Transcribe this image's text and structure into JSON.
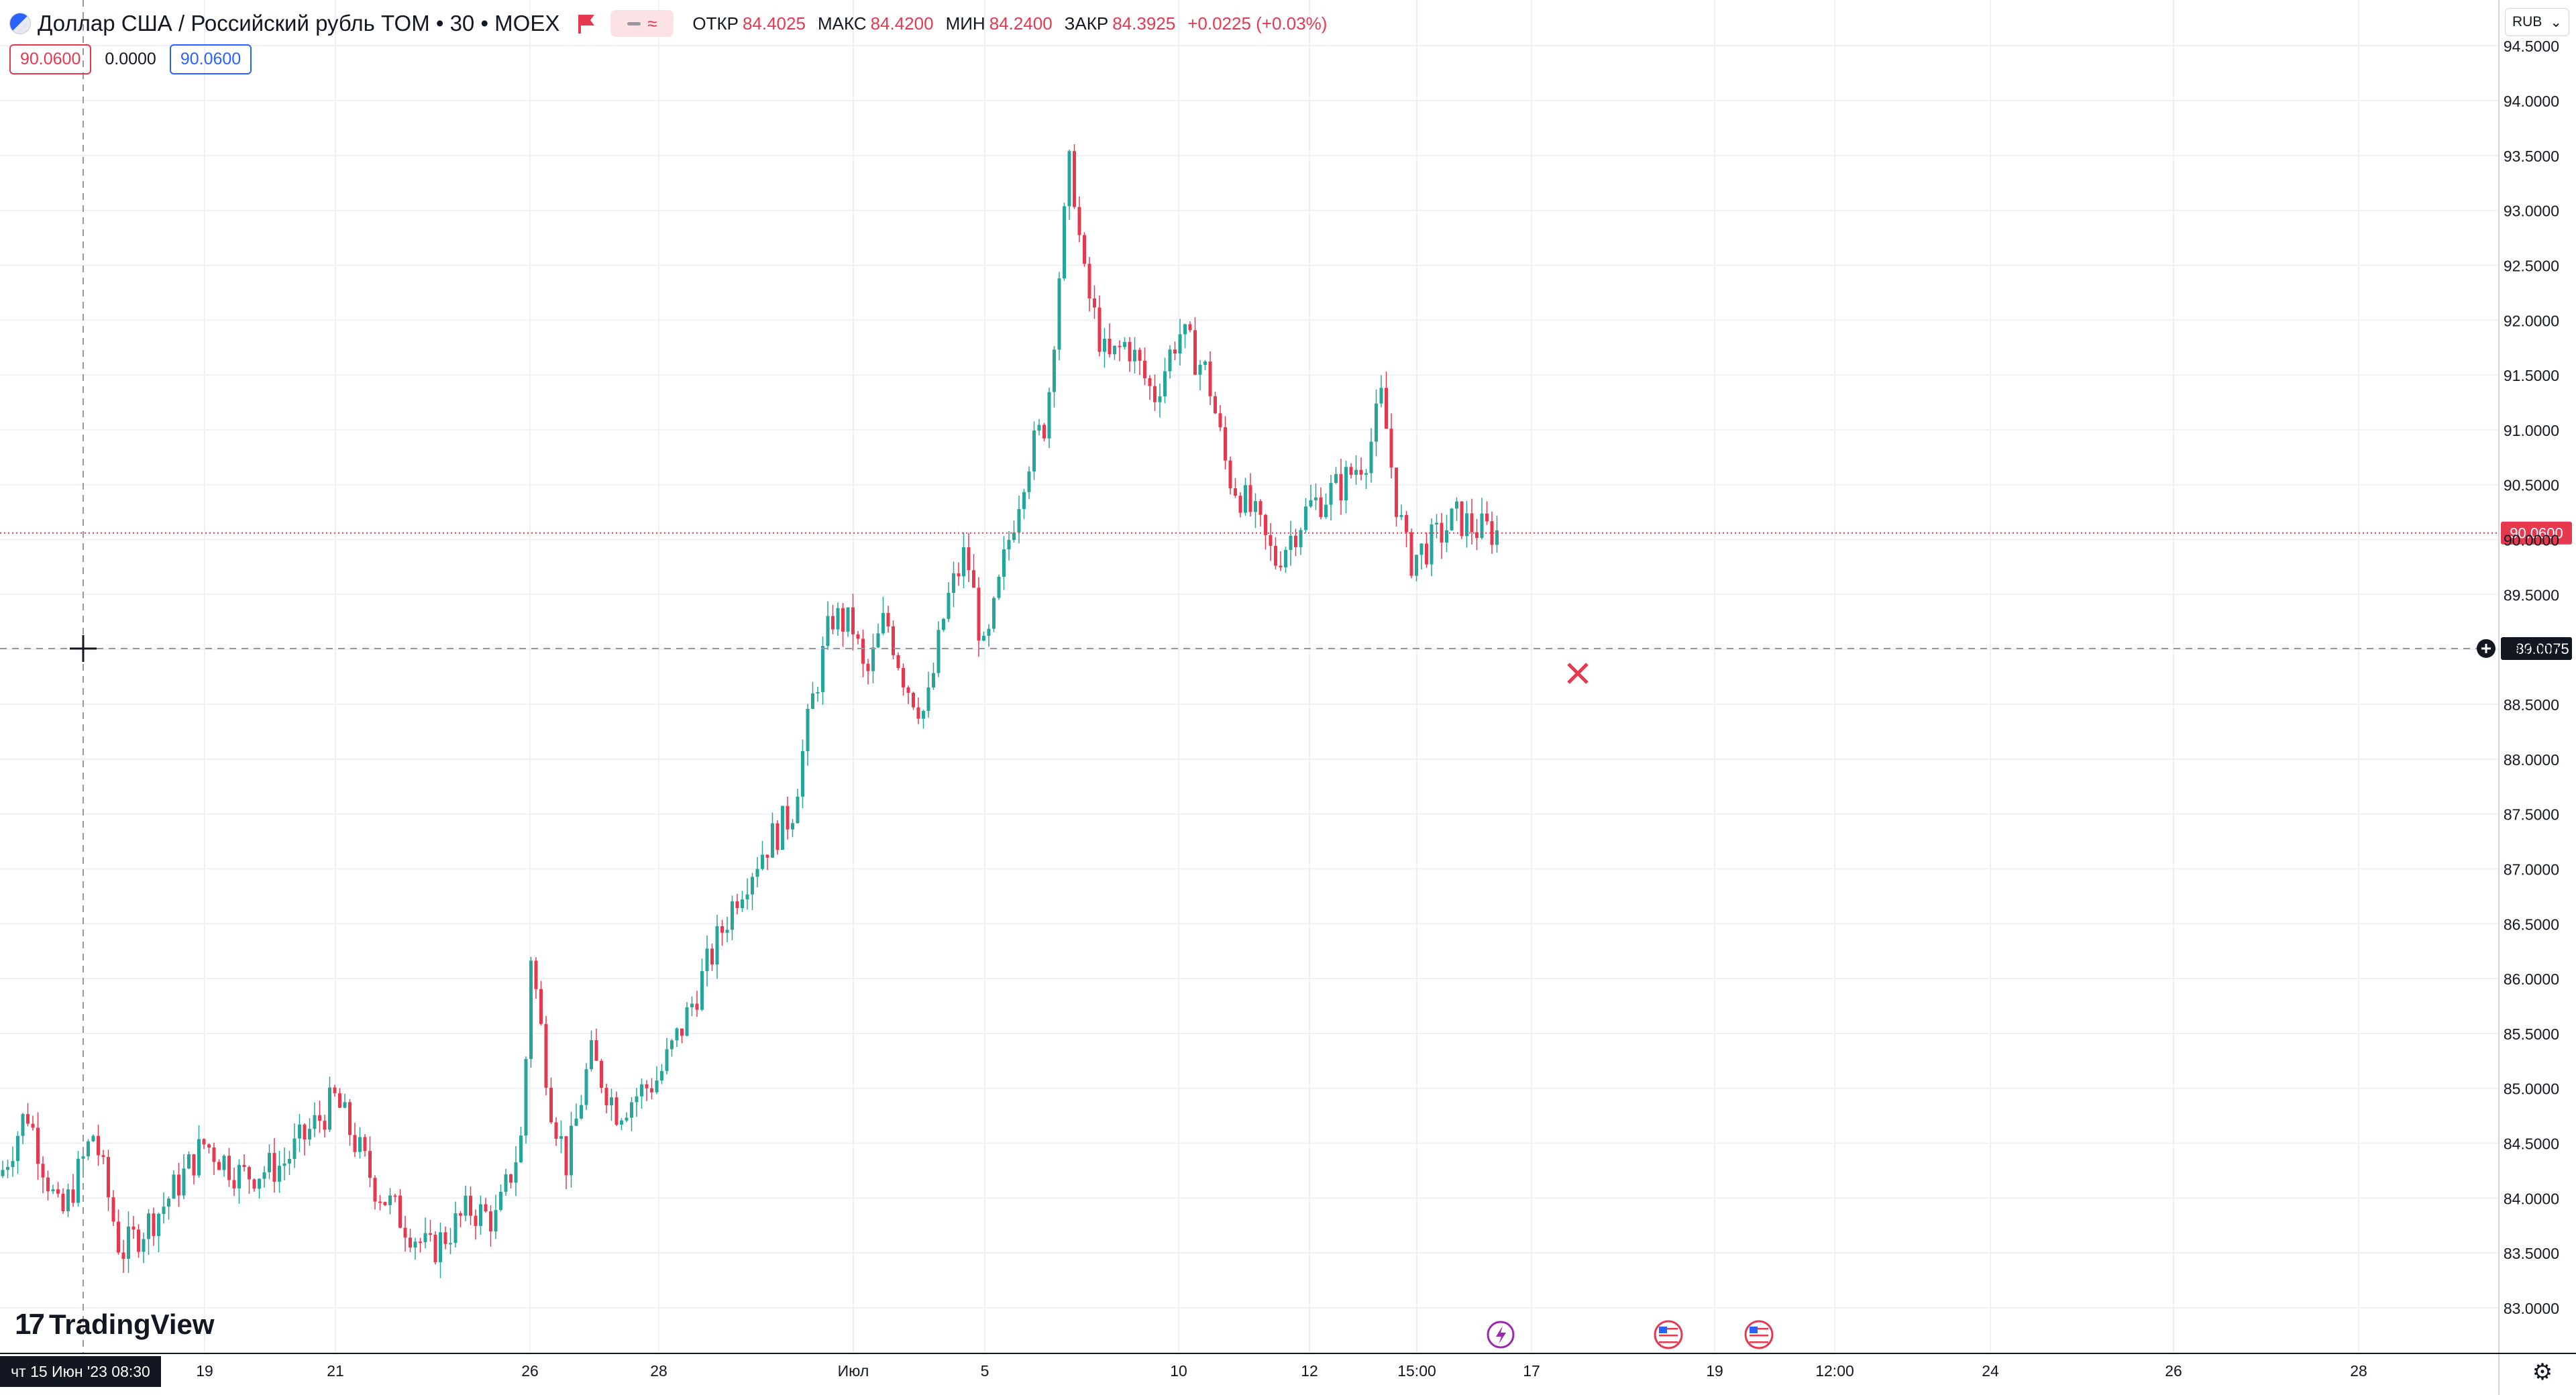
{
  "symbol": {
    "title": "Доллар США / Российский рубль TOM • 30 • MOEX",
    "ohlc": [
      {
        "label": "ОТКР",
        "value": "84.4025"
      },
      {
        "label": "МАКС",
        "value": "84.4200"
      },
      {
        "label": "МИН",
        "value": "84.2400"
      },
      {
        "label": "ЗАКР",
        "value": "84.3925"
      },
      {
        "label": "",
        "value": "+0.0225 (+0.03%)"
      }
    ]
  },
  "order_badges": {
    "sell": "90.0600",
    "spread": "0.0000",
    "buy": "90.0600"
  },
  "currency_unit": "RUB",
  "brand": "TradingView",
  "crosshair": {
    "date_label": "чт 15 Июн '23   08:30",
    "price_label": "89.0075"
  },
  "colors": {
    "up": "#26a69a",
    "down": "#e63950",
    "last_price": "#e63950",
    "grid": "#eef0f4",
    "crosshair": "#9598a1"
  },
  "icons": [
    "chart-symbol-icon",
    "flag-icon",
    "indicator-pill-icon",
    "unit-chevron-icon",
    "plus-circle-icon",
    "lightning-event-icon",
    "us-flag-event-icon",
    "close-x-icon",
    "settings-gear-icon"
  ],
  "chart_data": {
    "type": "candlestick",
    "title": "Доллар США / Российский рубль TOM • 30 • MOEX",
    "xlabel": "",
    "ylabel": "",
    "ylim": [
      82.8,
      94.6
    ],
    "y_ticks": [
      "83.0000",
      "83.5000",
      "84.0000",
      "84.5000",
      "85.0000",
      "85.5000",
      "86.0000",
      "86.5000",
      "87.0000",
      "87.5000",
      "88.0000",
      "88.5000",
      "89.0000",
      "89.5000",
      "90.0000",
      "90.5000",
      "91.0000",
      "91.5000",
      "92.0000",
      "92.5000",
      "93.0000",
      "93.5000",
      "94.0000",
      "94.5000"
    ],
    "x_ticks": [
      "19",
      "21",
      "26",
      "28",
      "Июл",
      "5",
      "10",
      "12",
      "15:00",
      "17",
      "19",
      "12:00",
      "24",
      "26",
      "28"
    ],
    "last_price": "90.0600",
    "grid": true,
    "series": [
      {
        "name": "",
        "x": [
          "2023-06-15",
          "2023-06-16",
          "2023-06-19",
          "2023-06-20",
          "2023-06-21",
          "2023-06-22",
          "2023-06-23",
          "2023-06-26",
          "2023-06-27",
          "2023-06-28",
          "2023-06-29",
          "2023-06-30",
          "2023-07-03",
          "2023-07-04",
          "2023-07-05",
          "2023-07-06",
          "2023-07-07",
          "2023-07-10",
          "2023-07-11",
          "2023-07-12",
          "2023-07-13",
          "2023-07-14"
        ],
        "close": [
          84.6,
          83.6,
          84.5,
          84.2,
          84.9,
          83.7,
          84.7,
          84.6,
          85.0,
          85.1,
          86.9,
          88.0,
          89.3,
          88.6,
          89.7,
          93.0,
          91.9,
          91.9,
          90.1,
          90.9,
          90.0,
          90.06
        ]
      }
    ]
  }
}
